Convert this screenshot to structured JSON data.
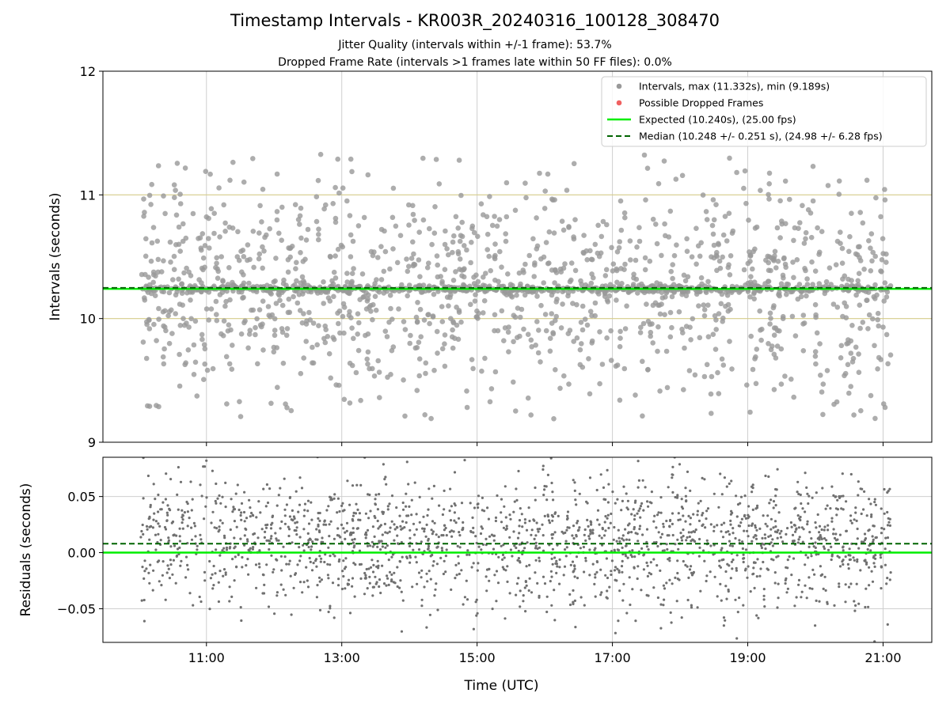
{
  "figure": {
    "title": "Timestamp Intervals - KR003R_20240316_100128_308470",
    "subtitle_1": "Jitter Quality (intervals within +/-1 frame): 53.7%",
    "subtitle_2": "Dropped Frame Rate (intervals >1 frames late within 50 FF files): 0.0%"
  },
  "chart_data": [
    {
      "type": "scatter",
      "ylabel": "Intervals (seconds)",
      "x_range_hours": [
        9.47,
        21.72
      ],
      "ylim": [
        9,
        12
      ],
      "yticks": [
        9,
        10,
        11,
        12
      ],
      "ytick_labels": [
        "9",
        "10",
        "11",
        "12"
      ],
      "xticks_hours": [
        11,
        13,
        15,
        17,
        19,
        21
      ],
      "grid": true,
      "legend_position": "top-right",
      "reference_lines": [
        10,
        11
      ],
      "n_points": 1950,
      "time_start_hour": 10.03,
      "time_end_hour": 21.12,
      "series": [
        {
          "name": "Intervals, max (11.332s), min (9.189s)",
          "kind": "scatter",
          "color": "#999999",
          "max": 11.332,
          "min": 9.189,
          "center": 10.24,
          "spread": 0.45
        },
        {
          "name": "Possible Dropped Frames",
          "kind": "scatter",
          "color": "#f06060",
          "values": []
        },
        {
          "name": "Expected (10.240s), (25.00 fps)",
          "kind": "hline",
          "value": 10.24,
          "color": "#00ee00"
        },
        {
          "name": "Median (10.248 +/- 0.251 s), (24.98 +/- 6.28 fps)",
          "kind": "hline",
          "value": 10.248,
          "color": "#006400",
          "dashed": true
        }
      ]
    },
    {
      "type": "scatter",
      "xlabel": "Time (UTC)",
      "ylabel": "Residuals (seconds)",
      "x_range_hours": [
        9.47,
        21.72
      ],
      "ylim": [
        -0.08,
        0.085
      ],
      "yticks": [
        -0.05,
        0.0,
        0.05
      ],
      "ytick_labels": [
        "−0.05",
        "0.00",
        "0.05"
      ],
      "xticks_hours": [
        11,
        13,
        15,
        17,
        19,
        21
      ],
      "xtick_labels": [
        "11:00",
        "13:00",
        "15:00",
        "17:00",
        "19:00",
        "21:00"
      ],
      "grid": true,
      "n_points": 1950,
      "series": [
        {
          "kind": "scatter",
          "color": "#707070",
          "center": 0.01,
          "spread": 0.03
        },
        {
          "kind": "hline",
          "value": 0.0,
          "color": "#00ee00"
        },
        {
          "kind": "hline",
          "value": 0.008,
          "color": "#006400",
          "dashed": true
        }
      ]
    }
  ]
}
